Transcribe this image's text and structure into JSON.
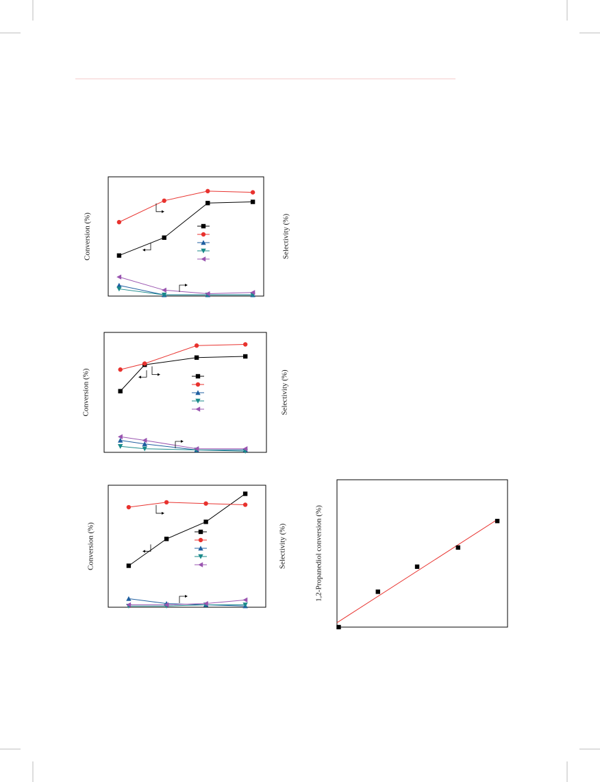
{
  "chart_data": [
    {
      "type": "line",
      "ylabel": "Conversion (%)",
      "y2label": "Selectivity (%)",
      "x": [
        7,
        36,
        64,
        93
      ],
      "xlim": [
        0,
        100
      ],
      "ylim": [
        0,
        100
      ],
      "series": [
        {
          "color": "#000000",
          "marker": "square",
          "values": [
            34,
            49,
            78,
            79
          ]
        },
        {
          "color": "#e8322e",
          "marker": "circle",
          "values": [
            62,
            80,
            88,
            87
          ]
        },
        {
          "color": "#1f5fa0",
          "marker": "triangle-up",
          "values": [
            9,
            1,
            1,
            1
          ]
        },
        {
          "color": "#1a8a8a",
          "marker": "triangle-down",
          "values": [
            6,
            1,
            1,
            1
          ]
        },
        {
          "color": "#9a55b0",
          "marker": "triangle-left",
          "values": [
            16,
            5,
            2,
            3
          ]
        }
      ]
    },
    {
      "type": "line",
      "ylabel": "Conversion (%)",
      "y2label": "Selectivity (%)",
      "x": [
        10,
        25,
        57,
        87
      ],
      "xlim": [
        0,
        100
      ],
      "ylim": [
        0,
        100
      ],
      "series": [
        {
          "color": "#000000",
          "marker": "square",
          "values": [
            51,
            73,
            79,
            80
          ]
        },
        {
          "color": "#e8322e",
          "marker": "circle",
          "values": [
            69,
            74,
            89,
            90
          ]
        },
        {
          "color": "#1f5fa0",
          "marker": "triangle-up",
          "values": [
            10,
            7,
            2,
            2
          ]
        },
        {
          "color": "#1a8a8a",
          "marker": "triangle-down",
          "values": [
            5,
            3,
            2,
            1
          ]
        },
        {
          "color": "#9a55b0",
          "marker": "triangle-left",
          "values": [
            13,
            10,
            3,
            3
          ]
        }
      ]
    },
    {
      "type": "line",
      "ylabel": "Conversion (%)",
      "y2label": "Selectivity (%)",
      "x": [
        13,
        37,
        62,
        87
      ],
      "xlim": [
        0,
        100
      ],
      "ylim": [
        0,
        100
      ],
      "series": [
        {
          "color": "#000000",
          "marker": "square",
          "values": [
            34,
            56,
            70,
            93
          ]
        },
        {
          "color": "#e8322e",
          "marker": "circle",
          "values": [
            82,
            86,
            85,
            84
          ]
        },
        {
          "color": "#1f5fa0",
          "marker": "triangle-up",
          "values": [
            7,
            3,
            2,
            1
          ]
        },
        {
          "color": "#1a8a8a",
          "marker": "triangle-down",
          "values": [
            1,
            1,
            2,
            2
          ]
        },
        {
          "color": "#9a55b0",
          "marker": "triangle-left",
          "values": [
            2,
            2,
            3,
            6
          ]
        }
      ]
    },
    {
      "type": "scatter",
      "ylabel": "1,2-Propanediol conversion (%)",
      "x": [
        1,
        24,
        47,
        71,
        94
      ],
      "values": [
        0,
        24,
        41,
        54,
        72
      ],
      "color": "#000000",
      "xlim": [
        0,
        100
      ],
      "ylim": [
        0,
        100
      ],
      "trend_line": {
        "color": "#e8322e",
        "x": [
          0,
          94
        ],
        "values": [
          3,
          73
        ]
      }
    }
  ]
}
